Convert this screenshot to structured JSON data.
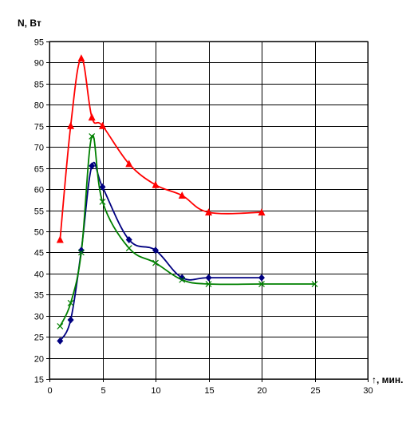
{
  "chart_data": {
    "type": "line",
    "title": "",
    "ylabel": "N, Вт",
    "xlabel": "↑, мин.",
    "xlim": [
      0,
      30
    ],
    "ylim": [
      15,
      95
    ],
    "xticks": [
      0,
      5,
      10,
      15,
      20,
      25,
      30
    ],
    "yticks": [
      15,
      20,
      25,
      30,
      35,
      40,
      45,
      50,
      55,
      60,
      65,
      70,
      75,
      80,
      85,
      90,
      95
    ],
    "grid": true,
    "legend": "none",
    "series": [
      {
        "color": "#ff0000",
        "marker": "triangle",
        "points": [
          [
            1,
            48
          ],
          [
            2,
            75
          ],
          [
            3,
            91
          ],
          [
            4,
            77
          ],
          [
            5,
            75
          ],
          [
            7.5,
            66
          ],
          [
            10,
            61
          ],
          [
            12.5,
            58.5
          ],
          [
            15,
            54.5
          ],
          [
            20,
            54.5
          ]
        ]
      },
      {
        "color": "#000080",
        "marker": "diamond",
        "points": [
          [
            1,
            24
          ],
          [
            2,
            29
          ],
          [
            3,
            45.5
          ],
          [
            4,
            65.5
          ],
          [
            5,
            60.5
          ],
          [
            7.5,
            48
          ],
          [
            10,
            45.5
          ],
          [
            12.5,
            39
          ],
          [
            15,
            39
          ],
          [
            20,
            39
          ]
        ]
      },
      {
        "color": "#008000",
        "marker": "x",
        "points": [
          [
            1,
            27.5
          ],
          [
            2,
            33
          ],
          [
            3,
            45
          ],
          [
            4,
            72.5
          ],
          [
            5,
            57
          ],
          [
            7.5,
            46
          ],
          [
            10,
            42.5
          ],
          [
            12.5,
            38.5
          ],
          [
            15,
            37.5
          ],
          [
            20,
            37.5
          ],
          [
            25,
            37.5
          ]
        ]
      }
    ]
  }
}
